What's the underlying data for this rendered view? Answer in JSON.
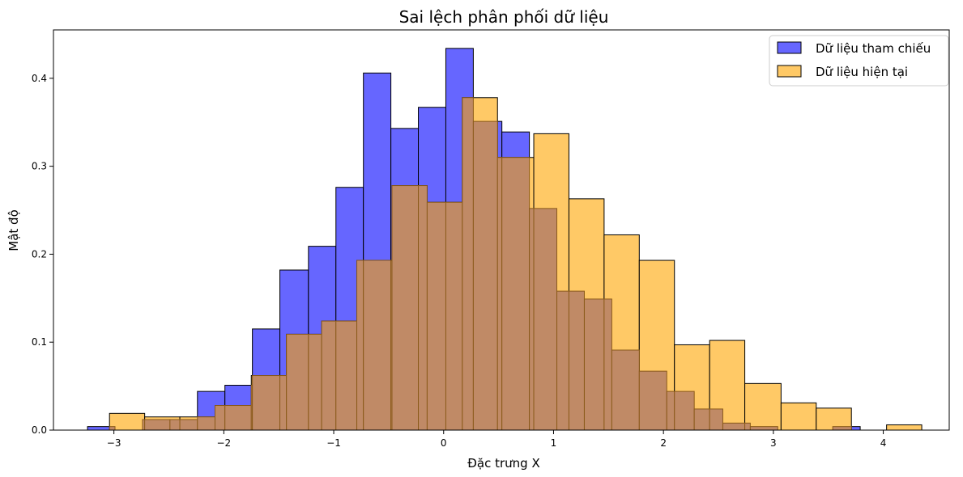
{
  "chart_data": {
    "type": "bar",
    "title": "Sai lệch phân phối dữ liệu",
    "xlabel": "Đặc trưng X",
    "ylabel": "Mật độ",
    "xlim": [
      -3.55,
      4.6
    ],
    "ylim": [
      0,
      0.455
    ],
    "xticks": [
      -3,
      -2,
      -1,
      0,
      1,
      2,
      3,
      4
    ],
    "xtick_labels": [
      "−3",
      "−2",
      "−1",
      "0",
      "1",
      "2",
      "3",
      "4"
    ],
    "yticks": [
      0,
      0.1,
      0.2,
      0.3,
      0.4
    ],
    "ytick_labels": [
      "0.0",
      "0.1",
      "0.2",
      "0.3",
      "0.4"
    ],
    "grid": false,
    "legend_position": "top-right",
    "series": [
      {
        "name": "Dữ liệu tham chiếu",
        "color": "#6666ff",
        "edge_color": "#000000",
        "bins": [
          [
            -3.24,
            -2.99,
            0.004
          ],
          [
            -2.74,
            -2.49,
            0.012
          ],
          [
            -2.49,
            -2.24,
            0.012
          ],
          [
            -2.24,
            -1.99,
            0.044
          ],
          [
            -1.99,
            -1.74,
            0.051
          ],
          [
            -1.74,
            -1.49,
            0.115
          ],
          [
            -1.49,
            -1.23,
            0.182
          ],
          [
            -1.23,
            -0.98,
            0.209
          ],
          [
            -0.98,
            -0.73,
            0.276
          ],
          [
            -0.73,
            -0.48,
            0.406
          ],
          [
            -0.48,
            -0.23,
            0.343
          ],
          [
            -0.23,
            0.02,
            0.367
          ],
          [
            0.02,
            0.27,
            0.434
          ],
          [
            0.27,
            0.53,
            0.351
          ],
          [
            0.53,
            0.78,
            0.339
          ],
          [
            0.78,
            1.03,
            0.252
          ],
          [
            1.03,
            1.28,
            0.158
          ],
          [
            1.28,
            1.53,
            0.149
          ],
          [
            1.53,
            1.78,
            0.091
          ],
          [
            1.78,
            2.03,
            0.067
          ],
          [
            2.03,
            2.28,
            0.044
          ],
          [
            2.28,
            2.54,
            0.024
          ],
          [
            2.54,
            2.79,
            0.008
          ],
          [
            2.79,
            3.04,
            0.004
          ],
          [
            3.54,
            3.79,
            0.004
          ]
        ]
      },
      {
        "name": "Dữ liệu hiện tại",
        "color": "#ffc966",
        "edge_color": "#000000",
        "bins": [
          [
            -3.04,
            -2.72,
            0.019
          ],
          [
            -2.72,
            -2.4,
            0.015
          ],
          [
            -2.4,
            -2.08,
            0.015
          ],
          [
            -2.08,
            -1.75,
            0.028
          ],
          [
            -1.75,
            -1.43,
            0.062
          ],
          [
            -1.43,
            -1.11,
            0.109
          ],
          [
            -1.11,
            -0.79,
            0.124
          ],
          [
            -0.79,
            -0.47,
            0.193
          ],
          [
            -0.47,
            -0.15,
            0.278
          ],
          [
            -0.15,
            0.17,
            0.259
          ],
          [
            0.17,
            0.49,
            0.378
          ],
          [
            0.49,
            0.82,
            0.31
          ],
          [
            0.82,
            1.14,
            0.337
          ],
          [
            1.14,
            1.46,
            0.263
          ],
          [
            1.46,
            1.78,
            0.222
          ],
          [
            1.78,
            2.1,
            0.193
          ],
          [
            2.1,
            2.42,
            0.097
          ],
          [
            2.42,
            2.74,
            0.102
          ],
          [
            2.74,
            3.07,
            0.053
          ],
          [
            3.07,
            3.39,
            0.031
          ],
          [
            3.39,
            3.71,
            0.025
          ],
          [
            4.03,
            4.35,
            0.006
          ]
        ]
      }
    ]
  }
}
